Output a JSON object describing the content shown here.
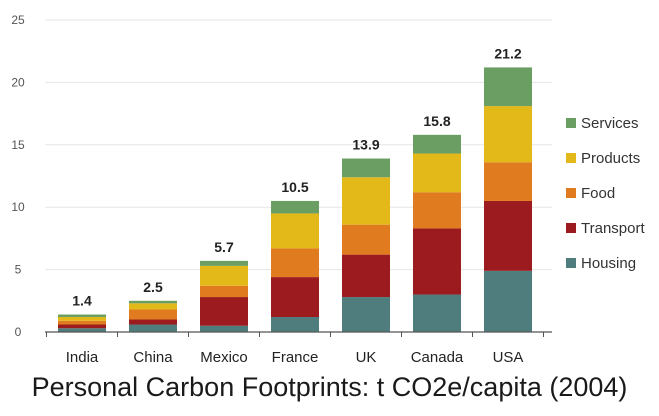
{
  "chart_data": {
    "type": "bar",
    "stacked": true,
    "title": "Personal Carbon Footprints: t CO2e/capita (2004)",
    "xlabel": "",
    "ylabel": "",
    "ylim": [
      0,
      25
    ],
    "yticks": [
      "0",
      "5",
      "10",
      "15",
      "20",
      "25"
    ],
    "grid": true,
    "legend_position": "right",
    "categories": [
      "India",
      "China",
      "Mexico",
      "France",
      "UK",
      "Canada",
      "USA"
    ],
    "totals": [
      "1.4",
      "2.5",
      "5.7",
      "10.5",
      "13.9",
      "15.8",
      "21.2"
    ],
    "series": [
      {
        "name": "Housing",
        "color": "#4f7d7e",
        "values": [
          0.3,
          0.6,
          0.5,
          1.2,
          2.8,
          3.0,
          4.9
        ]
      },
      {
        "name": "Transport",
        "color": "#9b1b1e",
        "values": [
          0.3,
          0.4,
          2.3,
          3.2,
          3.4,
          5.3,
          5.6
        ]
      },
      {
        "name": "Food",
        "color": "#e07b1f",
        "values": [
          0.3,
          0.8,
          0.9,
          2.3,
          2.4,
          2.9,
          3.1
        ]
      },
      {
        "name": "Products",
        "color": "#e3b819",
        "values": [
          0.3,
          0.5,
          1.6,
          2.8,
          3.8,
          3.1,
          4.5
        ]
      },
      {
        "name": "Services",
        "color": "#6a9e63",
        "values": [
          0.2,
          0.2,
          0.4,
          1.0,
          1.5,
          1.5,
          3.1
        ]
      }
    ]
  }
}
